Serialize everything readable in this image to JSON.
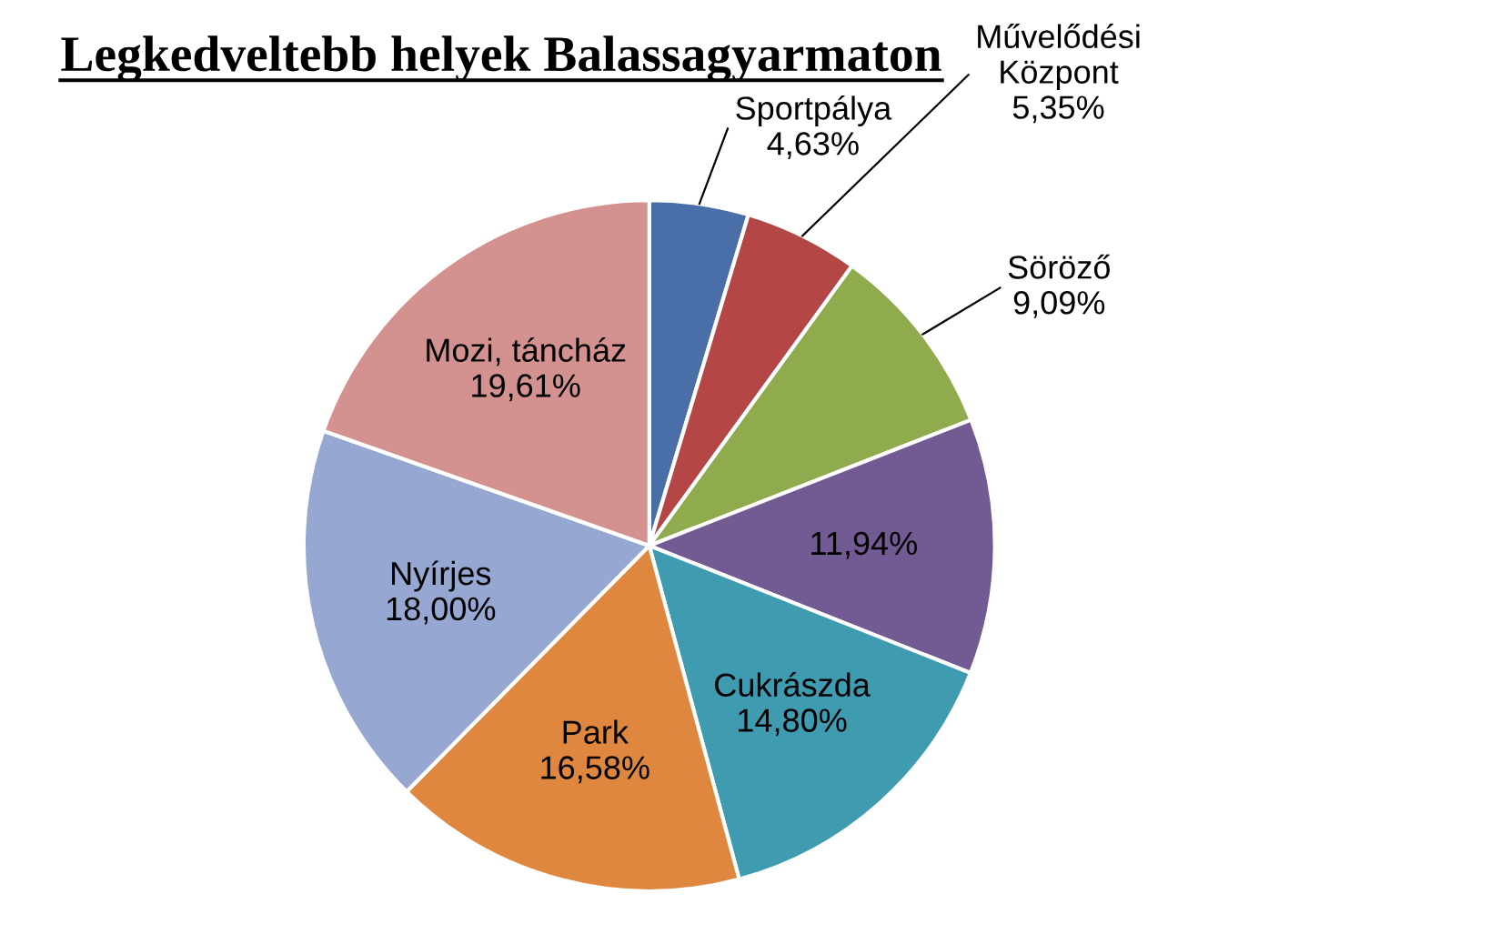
{
  "chart_data": {
    "type": "pie",
    "title": "Legkedveltebb helyek Balassagyarmaton",
    "categories": [
      "Sportpálya",
      "Művelődési\nKözpont",
      "Söröző",
      null,
      "Cukrászda",
      "Park",
      "Nyírjes",
      "Mozi, táncház"
    ],
    "values": [
      4.63,
      5.35,
      9.09,
      11.94,
      14.8,
      16.58,
      18.0,
      19.61
    ],
    "value_labels": [
      "4,63%",
      "5,35%",
      "9,09%",
      "11,94%",
      "14,80%",
      "16,58%",
      "18,00%",
      "19,61%"
    ],
    "colors": [
      "#4a6ea8",
      "#b44745",
      "#8fab4e",
      "#725a93",
      "#3f9bb0",
      "#e0873f",
      "#96a8d2",
      "#d39290"
    ],
    "legend": false
  }
}
